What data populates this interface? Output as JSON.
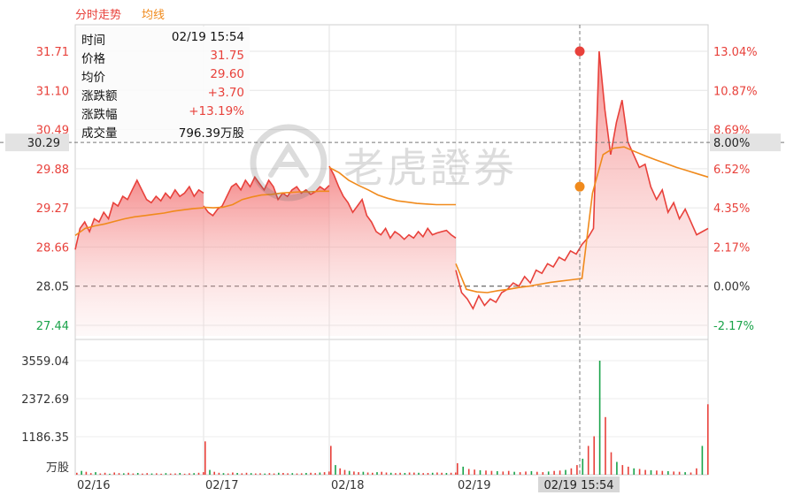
{
  "tabs": {
    "fenshi": "分时走势",
    "junxian": "均线"
  },
  "tooltip": {
    "rows": [
      {
        "label": "时间",
        "value": "02/19 15:54"
      },
      {
        "label": "价格",
        "value": "31.75"
      },
      {
        "label": "均价",
        "value": "29.60"
      },
      {
        "label": "涨跌额",
        "value": "+3.70"
      },
      {
        "label": "涨跌幅",
        "value": "+13.19%"
      },
      {
        "label": "成交量",
        "value": "796.39万股"
      }
    ]
  },
  "watermark": "老虎證券",
  "chart_data": {
    "type": "line",
    "prev_close": 28.05,
    "ylim": [
      27.44,
      31.71
    ],
    "price_ticks": [
      "31.71",
      "31.10",
      "30.49",
      "29.88",
      "29.27",
      "28.66",
      "28.05",
      "27.44"
    ],
    "pct_ticks": [
      "13.04%",
      "10.87%",
      "8.69%",
      "6.52%",
      "4.35%",
      "2.17%",
      "0.00%",
      "-2.17%"
    ],
    "volume_ticks": [
      "3559.04",
      "2372.69",
      "1186.35"
    ],
    "volume_unit": "万股",
    "dates": [
      "02/16",
      "02/17",
      "02/18",
      "02/19"
    ],
    "crosshair": {
      "date_label": "02/19 15:54",
      "price_label": "30.29",
      "pct_label": "8.00%",
      "price": 30.29
    },
    "series": [
      {
        "key": "price",
        "color": "#e8413b",
        "values": [
          [
            28.62,
            28.95,
            29.05,
            28.9,
            29.1,
            29.05,
            29.2,
            29.1,
            29.35,
            29.3,
            29.45,
            29.4,
            29.55,
            29.7,
            29.55,
            29.4,
            29.35,
            29.45,
            29.38,
            29.5,
            29.42,
            29.55,
            29.45,
            29.5,
            29.6,
            29.45,
            29.55,
            29.5
          ],
          [
            29.3,
            29.2,
            29.15,
            29.25,
            29.3,
            29.45,
            29.6,
            29.65,
            29.55,
            29.7,
            29.6,
            29.75,
            29.65,
            29.55,
            29.7,
            29.6,
            29.4,
            29.5,
            29.45,
            29.55,
            29.6,
            29.5,
            29.55,
            29.48,
            29.52,
            29.6,
            29.55,
            29.62
          ],
          [
            29.92,
            29.78,
            29.6,
            29.45,
            29.35,
            29.2,
            29.3,
            29.4,
            29.15,
            29.05,
            28.9,
            28.85,
            28.95,
            28.8,
            28.9,
            28.85,
            28.78,
            28.85,
            28.8,
            28.9,
            28.82,
            28.95,
            28.85,
            28.88,
            28.9,
            28.92,
            28.85,
            28.8
          ],
          [
            28.3,
            27.95,
            27.85,
            27.7,
            27.9,
            27.75,
            27.85,
            27.8,
            27.95,
            28.0,
            28.1,
            28.05,
            28.2,
            28.1,
            28.3,
            28.25,
            28.4,
            28.35,
            28.5,
            28.45,
            28.6,
            28.55,
            28.7,
            28.8,
            28.95,
            31.71,
            30.8,
            30.1,
            30.6,
            30.95,
            30.3,
            30.1,
            29.9,
            29.95,
            29.6,
            29.4,
            29.55,
            29.2,
            29.35,
            29.1,
            29.25,
            29.05,
            28.85,
            28.9,
            28.95
          ]
        ]
      },
      {
        "key": "avg",
        "color": "#f08a1c",
        "values": [
          [
            28.84,
            28.95,
            28.99,
            29.02,
            29.06,
            29.1,
            29.13,
            29.15,
            29.17,
            29.19,
            29.22,
            29.24,
            29.26,
            29.27
          ],
          [
            29.28,
            29.27,
            29.28,
            29.32,
            29.4,
            29.44,
            29.47,
            29.48,
            29.5,
            29.51,
            29.52,
            29.52,
            29.53,
            29.53
          ],
          [
            29.9,
            29.82,
            29.7,
            29.62,
            29.55,
            29.47,
            29.42,
            29.38,
            29.36,
            29.34,
            29.33,
            29.32,
            29.32,
            29.32
          ],
          [
            28.4,
            28.0,
            27.96,
            27.95,
            27.98,
            28.0,
            28.03,
            28.05,
            28.08,
            28.11,
            28.13,
            28.15,
            28.17,
            29.5,
            30.1,
            30.2,
            30.22,
            30.15,
            30.08,
            30.02,
            29.96,
            29.9,
            29.85,
            29.8,
            29.75
          ]
        ]
      }
    ],
    "volume_bars": [
      [
        60,
        120,
        90,
        50,
        80,
        40,
        60,
        30,
        70,
        50,
        45,
        60,
        40,
        55,
        35,
        50,
        40,
        45,
        30,
        50,
        35,
        40,
        55,
        30,
        45,
        50,
        60,
        80
      ],
      [
        1040,
        150,
        90,
        60,
        50,
        40,
        70,
        55,
        45,
        60,
        50,
        40,
        45,
        35,
        50,
        40,
        60,
        55,
        45,
        50,
        40,
        45,
        55,
        60,
        50,
        70,
        80,
        100
      ],
      [
        900,
        300,
        200,
        150,
        120,
        100,
        80,
        90,
        70,
        60,
        80,
        90,
        70,
        60,
        50,
        60,
        55,
        70,
        65,
        60,
        50,
        55,
        60,
        70,
        60,
        55,
        60,
        70
      ],
      [
        360,
        250,
        180,
        160,
        140,
        130,
        120,
        110,
        100,
        120,
        90,
        80,
        100,
        110,
        90,
        80,
        100,
        120,
        130,
        150,
        200,
        300,
        500,
        900,
        1200,
        3559,
        1800,
        700,
        400,
        300,
        250,
        200,
        180,
        150,
        140,
        130,
        120,
        110,
        100,
        90,
        80,
        70,
        200,
        900,
        2200
      ]
    ]
  }
}
